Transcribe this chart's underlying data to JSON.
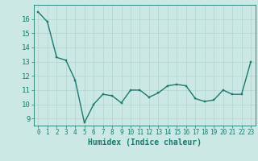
{
  "x": [
    0,
    1,
    2,
    3,
    4,
    5,
    6,
    7,
    8,
    9,
    10,
    11,
    12,
    13,
    14,
    15,
    16,
    17,
    18,
    19,
    20,
    21,
    22,
    23
  ],
  "y": [
    16.5,
    15.8,
    13.3,
    13.1,
    11.7,
    8.7,
    10.0,
    10.7,
    10.6,
    10.1,
    11.0,
    11.0,
    10.5,
    10.8,
    11.3,
    11.4,
    11.3,
    10.4,
    10.2,
    10.3,
    11.0,
    10.7,
    10.7,
    13.0
  ],
  "xlim": [
    -0.5,
    23.5
  ],
  "ylim": [
    8.5,
    17.0
  ],
  "yticks": [
    9,
    10,
    11,
    12,
    13,
    14,
    15,
    16
  ],
  "xticks": [
    0,
    1,
    2,
    3,
    4,
    5,
    6,
    7,
    8,
    9,
    10,
    11,
    12,
    13,
    14,
    15,
    16,
    17,
    18,
    19,
    20,
    21,
    22,
    23
  ],
  "xlabel": "Humidex (Indice chaleur)",
  "line_color": "#1a7a6e",
  "marker_color": "#1a7a6e",
  "bg_color": "#cce8e4",
  "grid_color": "#b0d4d0",
  "xlabel_color": "#1a7a6e",
  "tick_color": "#1a7a6e",
  "xlabel_fontsize": 7,
  "ytick_fontsize": 6.5,
  "xtick_fontsize": 5.5,
  "linewidth": 1.0,
  "markersize": 2.0
}
